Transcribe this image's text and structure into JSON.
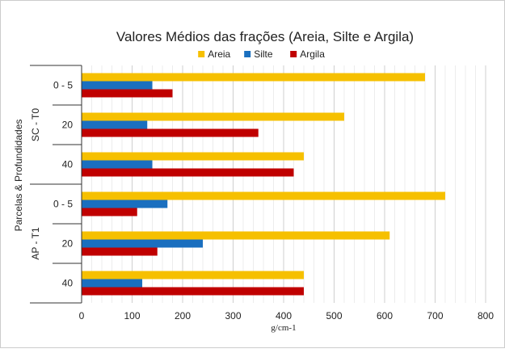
{
  "chart_data": {
    "type": "bar",
    "orientation": "horizontal",
    "title": "Valores Médios das frações (Areia, Silte e Argila)",
    "xlabel": "g/cm-1",
    "ylabel": "Parcelas & Profundidades",
    "xlim": [
      0,
      800
    ],
    "xticks": [
      0,
      100,
      200,
      300,
      400,
      500,
      600,
      700,
      800
    ],
    "grid": true,
    "legend_position": "top",
    "groups": [
      {
        "label": "SC - T0",
        "categories": [
          "0 - 5",
          "20",
          "40"
        ]
      },
      {
        "label": "AP - T1",
        "categories": [
          "0 - 5",
          "20",
          "40"
        ]
      }
    ],
    "series": [
      {
        "name": "Areia",
        "color": "#f6c000",
        "values": [
          680,
          520,
          440,
          720,
          610,
          440
        ]
      },
      {
        "name": "Silte",
        "color": "#1a6fbf",
        "values": [
          140,
          130,
          140,
          170,
          240,
          120
        ]
      },
      {
        "name": "Argila",
        "color": "#c00000",
        "values": [
          180,
          350,
          420,
          110,
          150,
          440
        ]
      }
    ]
  }
}
